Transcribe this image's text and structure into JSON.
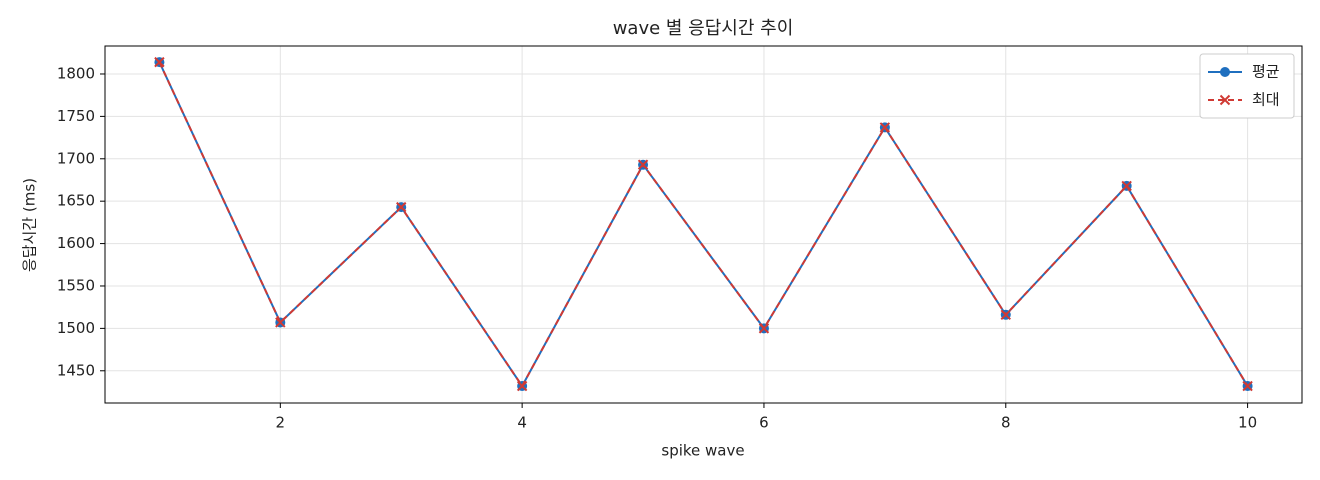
{
  "chart_data": {
    "type": "line",
    "title": "wave 별 응답시간 추이",
    "x_label": "spike wave",
    "y_label": "응답시간 (ms)",
    "x": [
      1,
      2,
      3,
      4,
      5,
      6,
      7,
      8,
      9,
      10
    ],
    "series": [
      {
        "name": "평균",
        "color": "#1f6fbf",
        "marker": "o",
        "linestyle": "solid",
        "values": [
          1814,
          1507,
          1643,
          1432,
          1693,
          1500,
          1737,
          1516,
          1668,
          1432
        ]
      },
      {
        "name": "최대",
        "color": "#d03a34",
        "marker": "x",
        "linestyle": "dashed",
        "values": [
          1814,
          1507,
          1643,
          1432,
          1693,
          1500,
          1737,
          1516,
          1668,
          1432
        ]
      }
    ],
    "xlim": [
      0.55,
      10.45
    ],
    "ylim": [
      1412,
      1833
    ],
    "xticks": [
      2,
      4,
      6,
      8,
      10
    ],
    "yticks": [
      1450,
      1500,
      1550,
      1600,
      1650,
      1700,
      1750,
      1800
    ],
    "grid": true,
    "legend": "upper right"
  }
}
